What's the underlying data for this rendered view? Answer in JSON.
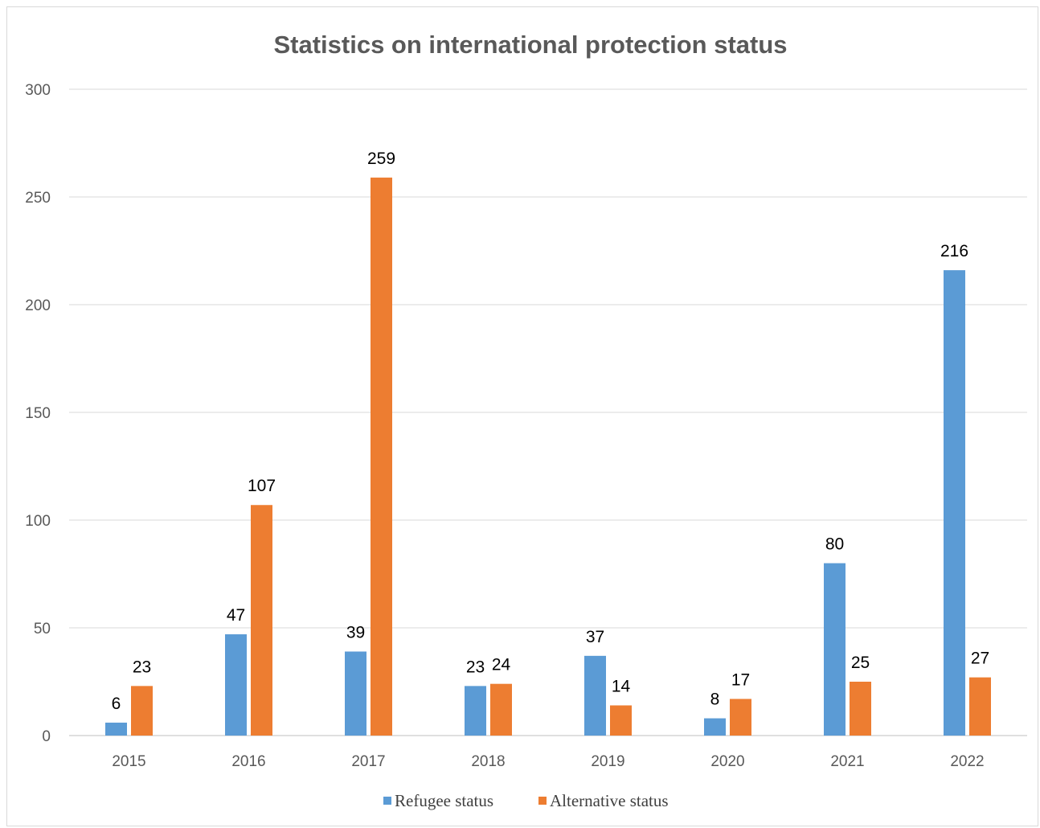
{
  "chart_data": {
    "type": "bar",
    "title": "Statistics on international protection status",
    "xlabel": "",
    "ylabel": "",
    "ylim": [
      0,
      300
    ],
    "yticks": [
      0,
      50,
      100,
      150,
      200,
      250,
      300
    ],
    "grid": true,
    "legend_position": "bottom",
    "categories": [
      "2015",
      "2016",
      "2017",
      "2018",
      "2019",
      "2020",
      "2021",
      "2022"
    ],
    "series": [
      {
        "name": "Refugee status",
        "color": "#5b9bd5",
        "values": [
          6,
          47,
          39,
          23,
          37,
          8,
          80,
          216
        ]
      },
      {
        "name": "Alternative status",
        "color": "#ed7d31",
        "values": [
          23,
          107,
          259,
          24,
          14,
          17,
          25,
          27
        ]
      }
    ]
  }
}
